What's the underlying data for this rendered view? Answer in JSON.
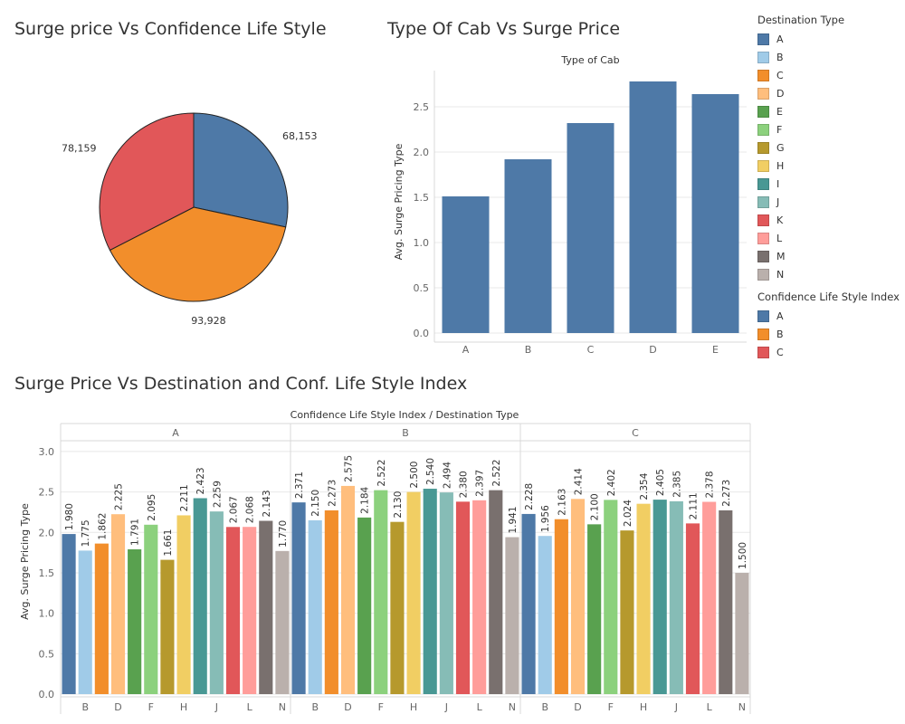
{
  "charts": {
    "pie_title": "Surge price Vs Confidence Life Style",
    "cab_title": "Type Of Cab Vs Surge Price",
    "dest_title": "Surge Price Vs Destination and Conf. Life Style Index"
  },
  "legend_destination": {
    "title": "Destination Type",
    "items": [
      {
        "label": "A",
        "color": "#4e79a7"
      },
      {
        "label": "B",
        "color": "#a0cbe8"
      },
      {
        "label": "C",
        "color": "#f28e2b"
      },
      {
        "label": "D",
        "color": "#ffbe7d"
      },
      {
        "label": "E",
        "color": "#59a14f"
      },
      {
        "label": "F",
        "color": "#8cd17d"
      },
      {
        "label": "G",
        "color": "#b6992d"
      },
      {
        "label": "H",
        "color": "#f1ce63"
      },
      {
        "label": "I",
        "color": "#499894"
      },
      {
        "label": "J",
        "color": "#86bcb6"
      },
      {
        "label": "K",
        "color": "#e15759"
      },
      {
        "label": "L",
        "color": "#ff9d9a"
      },
      {
        "label": "M",
        "color": "#79706e"
      },
      {
        "label": "N",
        "color": "#bab0ac"
      }
    ]
  },
  "legend_confidence": {
    "title": "Confidence Life Style Index",
    "items": [
      {
        "label": "A",
        "color": "#4e79a7"
      },
      {
        "label": "B",
        "color": "#f28e2b"
      },
      {
        "label": "C",
        "color": "#e15759"
      }
    ]
  },
  "chart_data": [
    {
      "type": "pie",
      "title": "Surge price Vs Confidence Life Style",
      "categories": [
        "A",
        "B",
        "C"
      ],
      "values": [
        68153,
        93928,
        78159
      ],
      "labels": [
        "68,153",
        "93,928",
        "78,159"
      ],
      "colors": [
        "#4e79a7",
        "#f28e2b",
        "#e15759"
      ]
    },
    {
      "type": "bar",
      "title": "Type Of Cab Vs Surge Price",
      "xlabel": "Type of Cab",
      "ylabel": "Avg. Surge Pricing Type",
      "categories": [
        "A",
        "B",
        "C",
        "D",
        "E"
      ],
      "values": [
        1.51,
        1.92,
        2.32,
        2.78,
        2.64
      ],
      "ylim": [
        0,
        2.9
      ],
      "yticks": [
        "0.0",
        "0.5",
        "1.0",
        "1.5",
        "2.0",
        "2.5"
      ],
      "color": "#4e79a7",
      "grid": true
    },
    {
      "type": "bar",
      "title": "Surge Price Vs Destination and Conf. Life Style Index",
      "xlabel": "Confidence Life Style Index  /  Destination Type",
      "ylabel": "Avg. Surge Pricing Type",
      "ylim": [
        0,
        3.1
      ],
      "yticks": [
        "0.0",
        "0.5",
        "1.0",
        "1.5",
        "2.0",
        "2.5",
        "3.0"
      ],
      "categories": [
        "A",
        "B",
        "C",
        "D",
        "E",
        "F",
        "G",
        "H",
        "I",
        "J",
        "K",
        "L",
        "M",
        "N"
      ],
      "tick_labels": [
        "",
        "B",
        "",
        "D",
        "",
        "F",
        "",
        "H",
        "",
        "J",
        "",
        "L",
        "",
        "N"
      ],
      "grid": true,
      "panels": [
        {
          "name": "A",
          "values": [
            1.98,
            1.775,
            1.862,
            2.225,
            1.791,
            2.095,
            1.661,
            2.211,
            2.423,
            2.259,
            2.067,
            2.068,
            2.143,
            1.77
          ],
          "labels": [
            "1.980",
            "1.775",
            "1.862",
            "2.225",
            "1.791",
            "2.095",
            "1.661",
            "2.211",
            "2.423",
            "2.259",
            "2.067",
            "2.068",
            "2.143",
            "1.770"
          ]
        },
        {
          "name": "B",
          "values": [
            2.371,
            2.15,
            2.273,
            2.575,
            2.184,
            2.522,
            2.13,
            2.5,
            2.54,
            2.494,
            2.38,
            2.397,
            2.522,
            1.941
          ],
          "labels": [
            "2.371",
            "2.150",
            "2.273",
            "2.575",
            "2.184",
            "2.522",
            "2.130",
            "2.500",
            "2.540",
            "2.494",
            "2.380",
            "2.397",
            "2.522",
            "1.941"
          ]
        },
        {
          "name": "C",
          "values": [
            2.228,
            1.956,
            2.163,
            2.414,
            2.1,
            2.402,
            2.024,
            2.354,
            2.405,
            2.385,
            2.111,
            2.378,
            2.273,
            1.5
          ],
          "labels": [
            "2.228",
            "1.956",
            "2.163",
            "2.414",
            "2.100",
            "2.402",
            "2.024",
            "2.354",
            "2.405",
            "2.385",
            "2.111",
            "2.378",
            "2.273",
            "1.500"
          ]
        }
      ]
    }
  ]
}
